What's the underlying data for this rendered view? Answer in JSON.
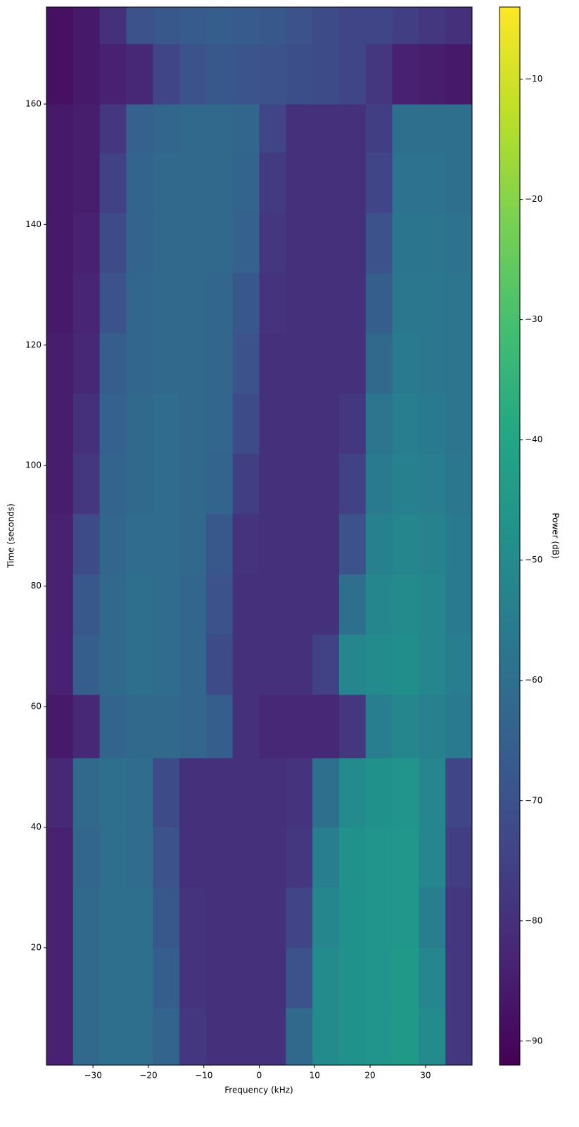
{
  "chart_data": {
    "type": "heatmap",
    "xlabel": "Frequency (kHz)",
    "ylabel": "Time (seconds)",
    "colorbar_label": "Power (dB)",
    "colormap": "viridis",
    "xlim": [
      -38.4,
      38.4
    ],
    "ylim": [
      0.5,
      176.1
    ],
    "clim": [
      -92,
      -4
    ],
    "xticks": [
      {
        "value": -30,
        "label": "−30"
      },
      {
        "value": -20,
        "label": "−20"
      },
      {
        "value": -10,
        "label": "−10"
      },
      0,
      10,
      20,
      30
    ],
    "yticks": [
      20,
      40,
      60,
      80,
      100,
      120,
      140,
      160
    ],
    "cticks": [
      {
        "value": -90,
        "label": "−90"
      },
      {
        "value": -80,
        "label": "−80"
      },
      {
        "value": -70,
        "label": "−70"
      },
      {
        "value": -60,
        "label": "−60"
      },
      {
        "value": -50,
        "label": "−50"
      },
      {
        "value": -40,
        "label": "−40"
      },
      {
        "value": -30,
        "label": "−30"
      },
      {
        "value": -20,
        "label": "−20"
      },
      {
        "value": -10,
        "label": "−10"
      }
    ],
    "x_edges": [
      -38.4,
      -33.6,
      -28.8,
      -24,
      -19.2,
      -14.4,
      -9.6,
      -4.8,
      0,
      4.8,
      9.6,
      14.4,
      19.2,
      24,
      28.8,
      33.6,
      38.4
    ],
    "y_edges": [
      0.5,
      10,
      20,
      30,
      40,
      51.5,
      62,
      72,
      82,
      92,
      102,
      112,
      122,
      132,
      142,
      152,
      160,
      170,
      176.1
    ],
    "z": [
      [
        -84,
        -62,
        -60,
        -60,
        -64,
        -78,
        -80,
        -80,
        -80,
        -62,
        -50,
        -48,
        -47,
        -45,
        -50,
        -78
      ],
      [
        -84,
        -62,
        -60,
        -60,
        -66,
        -79,
        -80,
        -80,
        -80,
        -70,
        -50,
        -48,
        -47,
        -45,
        -52,
        -78
      ],
      [
        -84,
        -62,
        -60,
        -60,
        -68,
        -79,
        -80,
        -80,
        -80,
        -74,
        -52,
        -48,
        -47,
        -46,
        -55,
        -78
      ],
      [
        -84,
        -63,
        -60,
        -61,
        -70,
        -80,
        -80,
        -80,
        -80,
        -78,
        -55,
        -48,
        -47,
        -46,
        -52,
        -76
      ],
      [
        -82,
        -62,
        -60,
        -61,
        -72,
        -80,
        -80,
        -80,
        -80,
        -79,
        -60,
        -50,
        -48,
        -47,
        -52,
        -74
      ],
      [
        -86,
        -82,
        -64,
        -62,
        -62,
        -63,
        -66,
        -80,
        -82,
        -82,
        -82,
        -78,
        -55,
        -52,
        -54,
        -56
      ],
      [
        -84,
        -66,
        -62,
        -60,
        -61,
        -63,
        -72,
        -80,
        -80,
        -80,
        -75,
        -52,
        -50,
        -49,
        -52,
        -55
      ],
      [
        -84,
        -68,
        -62,
        -60,
        -61,
        -63,
        -70,
        -80,
        -80,
        -80,
        -80,
        -60,
        -52,
        -50,
        -52,
        -56
      ],
      [
        -84,
        -72,
        -63,
        -61,
        -61,
        -62,
        -68,
        -79,
        -80,
        -80,
        -80,
        -70,
        -54,
        -52,
        -53,
        -56
      ],
      [
        -85,
        -78,
        -64,
        -62,
        -61,
        -62,
        -64,
        -76,
        -80,
        -80,
        -80,
        -75,
        -56,
        -54,
        -55,
        -57
      ],
      [
        -85,
        -80,
        -65,
        -62,
        -61,
        -62,
        -63,
        -72,
        -80,
        -80,
        -80,
        -78,
        -58,
        -55,
        -56,
        -58
      ],
      [
        -85,
        -82,
        -66,
        -63,
        -62,
        -62,
        -63,
        -70,
        -80,
        -80,
        -80,
        -80,
        -62,
        -56,
        -57,
        -58
      ],
      [
        -86,
        -83,
        -70,
        -63,
        -62,
        -62,
        -63,
        -68,
        -79,
        -80,
        -80,
        -80,
        -66,
        -57,
        -57,
        -58
      ],
      [
        -86,
        -84,
        -72,
        -64,
        -62,
        -62,
        -62,
        -65,
        -78,
        -80,
        -80,
        -80,
        -70,
        -58,
        -58,
        -59
      ],
      [
        -86,
        -85,
        -75,
        -64,
        -62,
        -62,
        -62,
        -64,
        -77,
        -80,
        -80,
        -80,
        -74,
        -59,
        -59,
        -60
      ],
      [
        -86,
        -85,
        -78,
        -65,
        -63,
        -62,
        -62,
        -63,
        -74,
        -80,
        -80,
        -80,
        -76,
        -60,
        -60,
        -60
      ],
      [
        -88,
        -86,
        -84,
        -82,
        -74,
        -70,
        -68,
        -69,
        -70,
        -71,
        -72,
        -74,
        -78,
        -84,
        -85,
        -86
      ],
      [
        -88,
        -86,
        -80,
        -70,
        -68,
        -67,
        -66,
        -67,
        -68,
        -70,
        -72,
        -74,
        -74,
        -76,
        -78,
        -80
      ]
    ]
  }
}
